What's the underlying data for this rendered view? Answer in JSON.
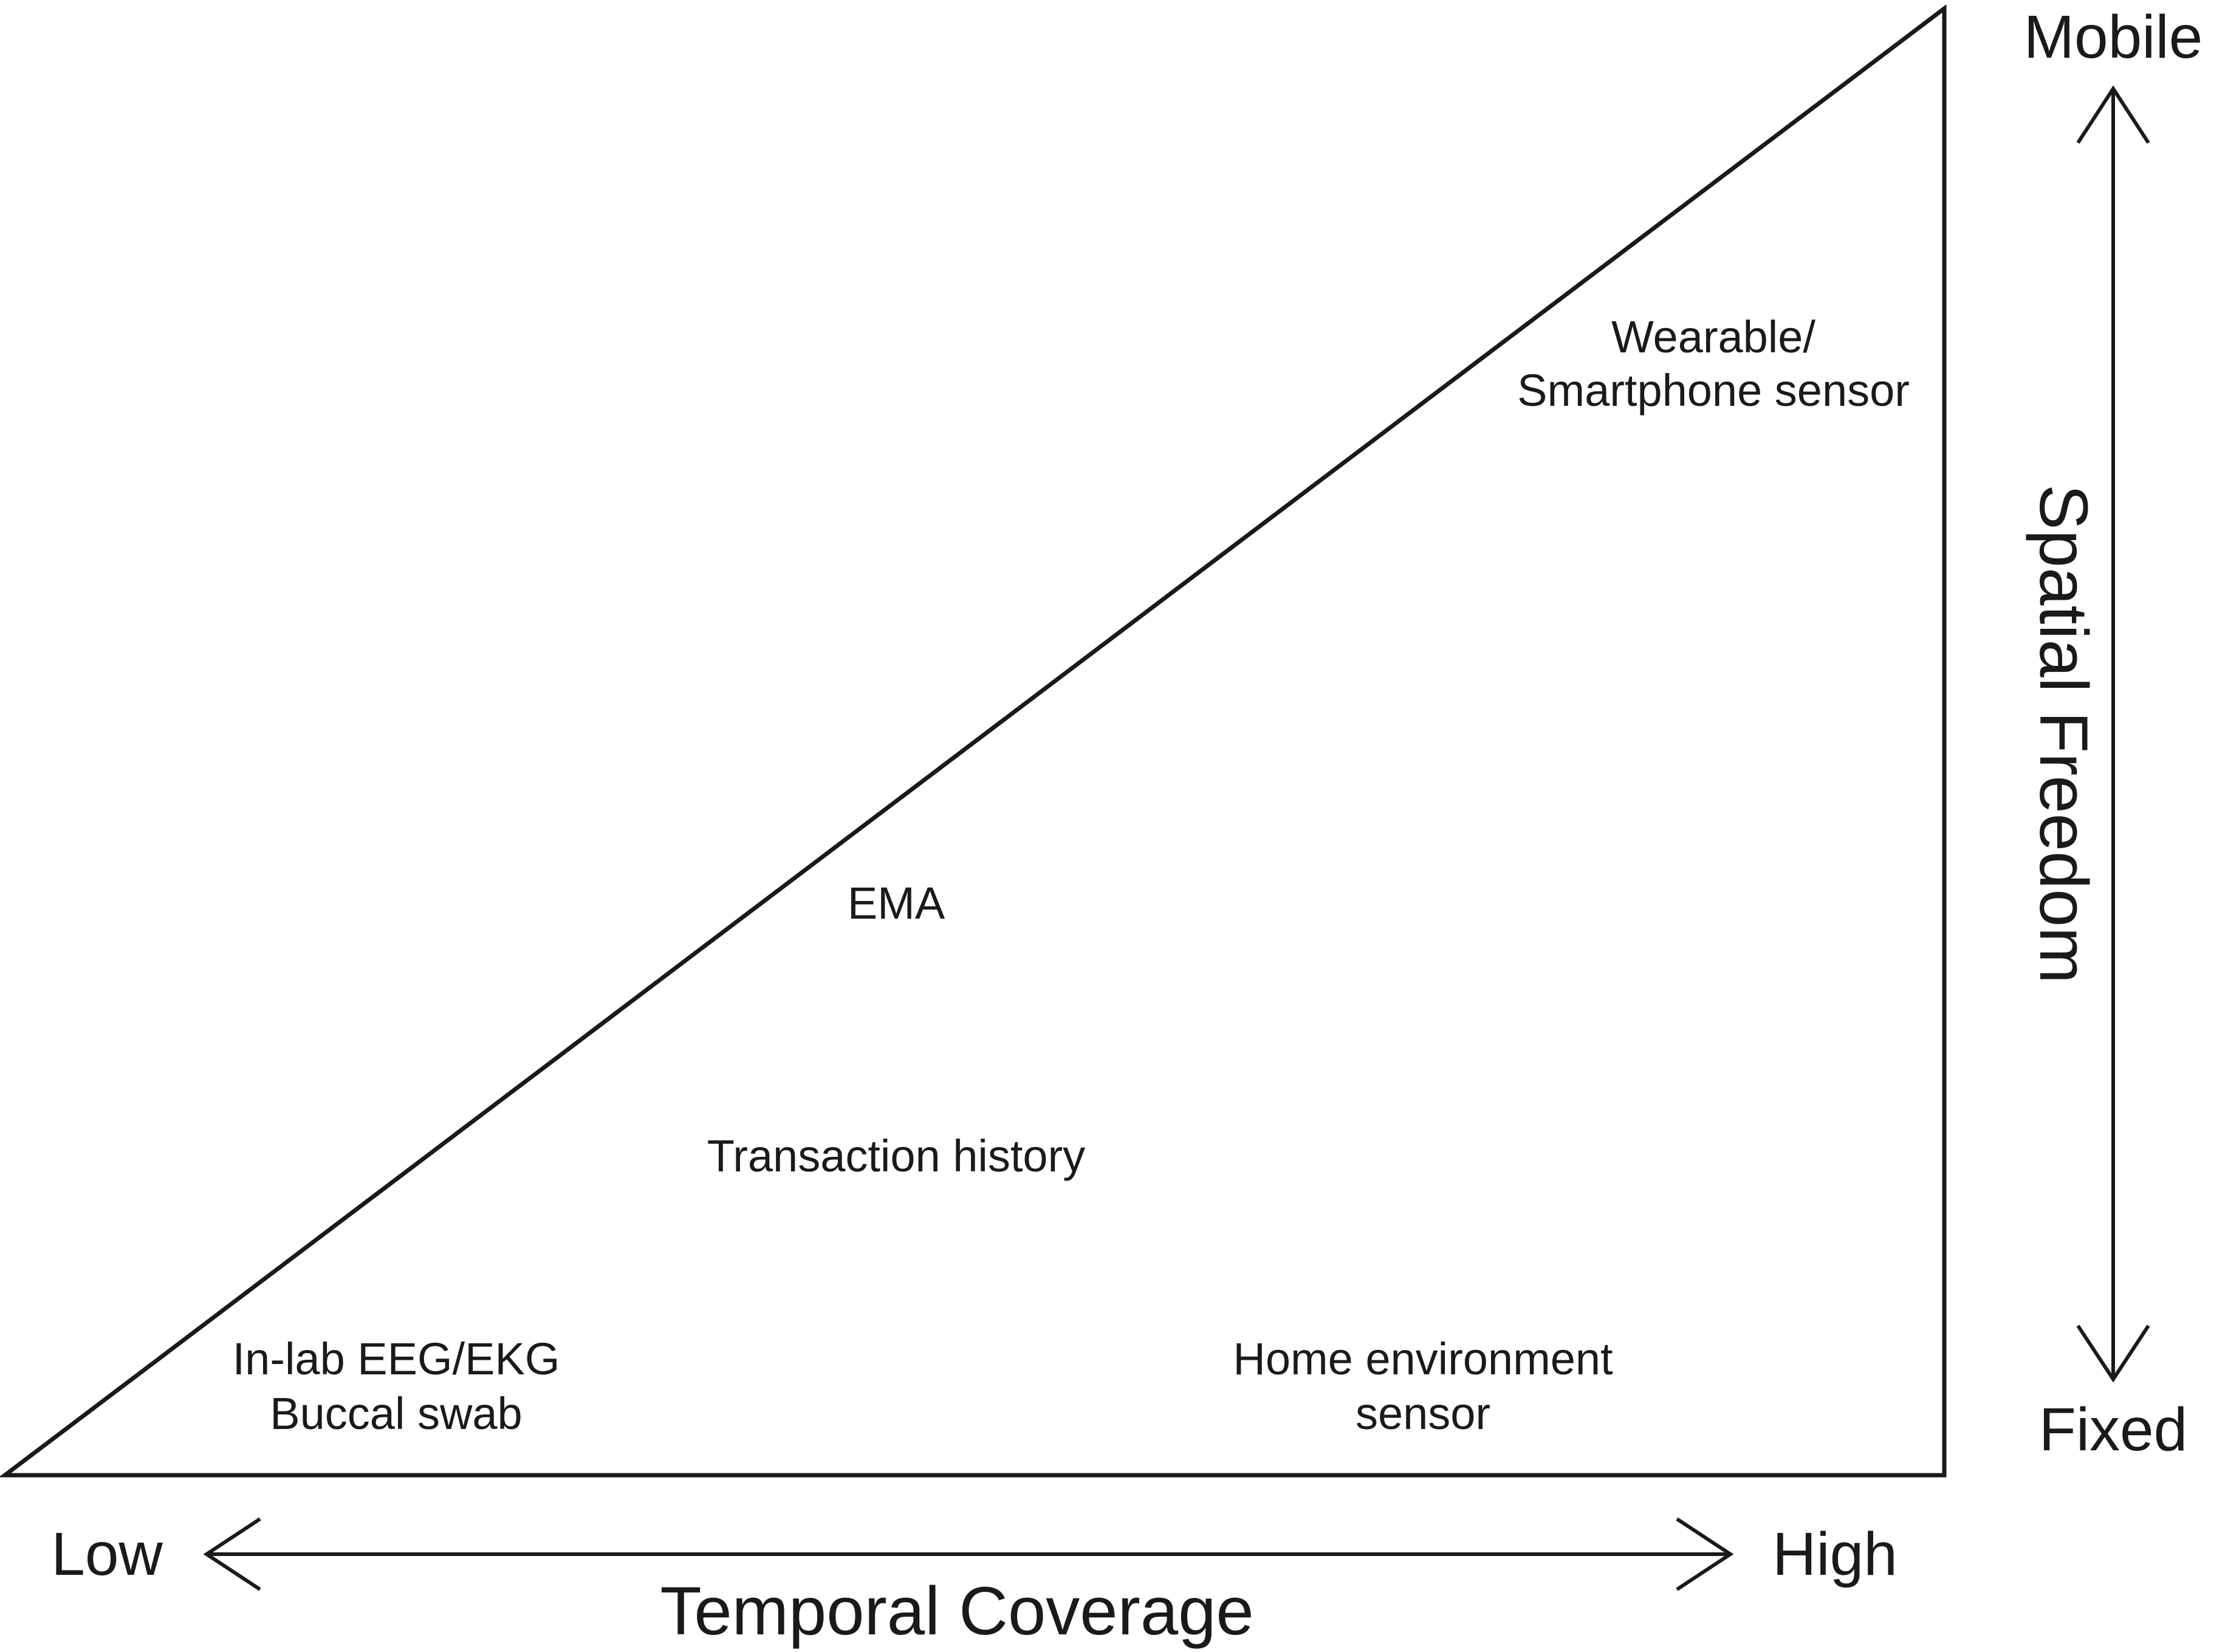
{
  "methods": {
    "wearable_line1": "Wearable/",
    "wearable_line2": "Smartphone sensor",
    "ema": "EMA",
    "transaction": "Transaction history",
    "inlab_line1": "In-lab EEG/EKG",
    "inlab_line2": "Buccal swab",
    "home_line1": "Home environment",
    "home_line2": "sensor"
  },
  "spatial_axis": {
    "title": "Spatial Freedom",
    "top_label": "Mobile",
    "bottom_label": "Fixed"
  },
  "temporal_axis": {
    "title": "Temporal Coverage",
    "left_label": "Low",
    "right_label": "High"
  }
}
